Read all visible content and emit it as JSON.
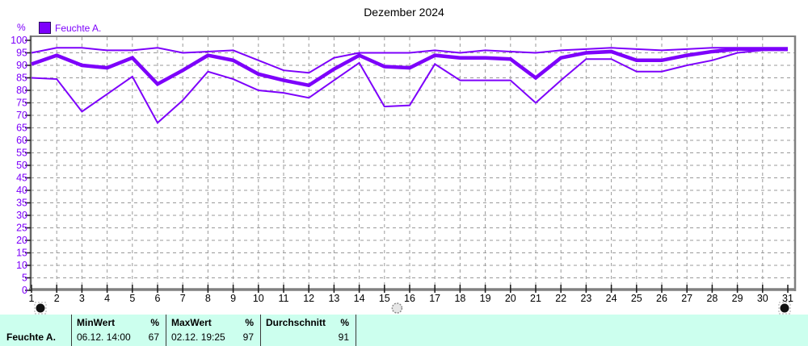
{
  "header": {
    "title": "Dezember 2024"
  },
  "axis": {
    "percent_label": "%"
  },
  "legend": {
    "items": [
      {
        "label": "Feuchte A.",
        "color": "#7D00FB",
        "swatch_icon": "filled-square"
      }
    ]
  },
  "colors": {
    "accent": "#7D00FB",
    "grid": "#999999",
    "axis_frame": "#808080",
    "tick": "#1a1a1a",
    "table_bg": "#CCFFEE"
  },
  "chart_data": {
    "type": "line",
    "title": "Dezember 2024",
    "ylabel": "%",
    "ylim": [
      0,
      100
    ],
    "ytick_step": 5,
    "grid": true,
    "legend_position": "top-left",
    "categories": [
      "1",
      "2",
      "3",
      "4",
      "5",
      "6",
      "7",
      "8",
      "9",
      "10",
      "11",
      "12",
      "13",
      "14",
      "15",
      "16",
      "17",
      "18",
      "19",
      "20",
      "21",
      "22",
      "23",
      "24",
      "25",
      "26",
      "27",
      "28",
      "29",
      "30",
      "31"
    ],
    "series": [
      {
        "name": "Feuchte A. max",
        "values": [
          95,
          97,
          97,
          96,
          96,
          97,
          95,
          95.5,
          96,
          92,
          88,
          87,
          93,
          95,
          95,
          95,
          96,
          95,
          96,
          95.5,
          95,
          96,
          96.5,
          97,
          96.5,
          96,
          96.5,
          97,
          97,
          97,
          97
        ]
      },
      {
        "name": "Feuchte A. mean",
        "values": [
          90.5,
          94,
          90,
          89,
          93,
          82.5,
          88,
          94,
          92,
          86.5,
          84,
          82,
          88.5,
          94,
          89.5,
          89,
          94,
          93,
          93,
          92.5,
          85,
          93,
          95,
          95.5,
          92,
          92,
          94,
          95.5,
          96.5,
          96.5,
          96.5
        ]
      },
      {
        "name": "Feuchte A. min",
        "values": [
          85,
          84.5,
          71.5,
          78.5,
          85.5,
          67,
          76,
          87.5,
          84.5,
          80,
          79,
          77,
          84,
          91,
          73.5,
          74,
          90.5,
          84,
          84,
          84,
          75,
          84,
          92.5,
          92.5,
          87.5,
          87.5,
          90,
          92,
          95,
          96,
          96
        ]
      }
    ]
  },
  "scrubber": {
    "handles": [
      {
        "name": "range-start-handle",
        "day": 1,
        "style": "black"
      },
      {
        "name": "mid-handle",
        "day": 15.5,
        "style": "gray"
      },
      {
        "name": "range-end-handle",
        "day": 31,
        "style": "black"
      }
    ]
  },
  "stats": {
    "series_label": "Feuchte A.",
    "min": {
      "label": "MinWert",
      "unit": "%",
      "datetime": "06.12. 14:00",
      "value": "67"
    },
    "max": {
      "label": "MaxWert",
      "unit": "%",
      "datetime": "02.12. 19:25",
      "value": "97"
    },
    "avg": {
      "label": "Durchschnitt",
      "unit": "%",
      "datetime": "",
      "value": "91"
    }
  }
}
